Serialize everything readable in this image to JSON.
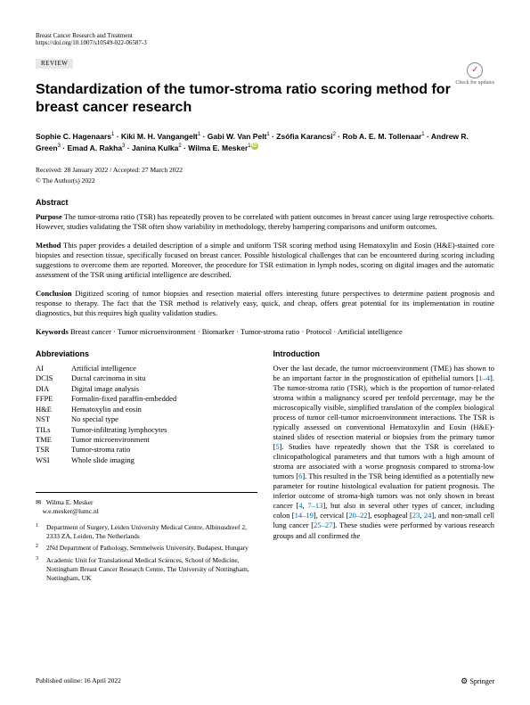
{
  "header": {
    "journal": "Breast Cancer Research and Treatment",
    "doi": "https://doi.org/10.1007/s10549-022-06587-3",
    "article_type": "REVIEW",
    "check_updates": "Check for updates"
  },
  "title": "Standardization of the tumor-stroma ratio scoring method for breast cancer research",
  "authors_html": "Sophie C. Hagenaars<sup>1</sup> · Kiki M. H. Vangangelt<sup>1</sup> · Gabi W. Van Pelt<sup>1</sup> · Zsófia Karancsi<sup>2</sup> · Rob A. E. M. Tollenaar<sup>1</sup> · Andrew R. Green<sup>3</sup> · Emad A. Rakha<sup>3</sup> · Janina Kulka<sup>2</sup> · Wilma E. Mesker<sup>1</sup><span class='orcid'>iD</span>",
  "dates": "Received: 28 January 2022 / Accepted: 27 March 2022",
  "copyright": "© The Author(s) 2022",
  "abstract": {
    "heading": "Abstract",
    "purpose_label": "Purpose",
    "purpose": " The tumor-stroma ratio (TSR) has repeatedly proven to be correlated with patient outcomes in breast cancer using large retrospective cohorts. However, studies validating the TSR often show variability in methodology, thereby hampering comparisons and uniform outcomes.",
    "method_label": "Method",
    "method": " This paper provides a detailed description of a simple and uniform TSR scoring method using Hematoxylin and Eosin (H&E)-stained core biopsies and resection tissue, specifically focused on breast cancer. Possible histological challenges that can be encountered during scoring including suggestions to overcome them are reported. Moreover, the procedure for TSR estimation in lymph nodes, scoring on digital images and the automatic assessment of the TSR using artificial intelligence are described.",
    "conclusion_label": "Conclusion",
    "conclusion": " Digitized scoring of tumor biopsies and resection material offers interesting future perspectives to determine patient prognosis and response to therapy. The fact that the TSR method is relatively easy, quick, and cheap, offers great potential for its implementation in routine diagnostics, but this requires high quality validation studies."
  },
  "keywords": {
    "label": "Keywords",
    "text": " Breast cancer · Tumor microenvironment · Biomarker · Tumor-stroma ratio · Protocol · Artificial intelligence"
  },
  "abbreviations": {
    "heading": "Abbreviations",
    "items": [
      {
        "k": "AI",
        "v": "Artificial intelligence"
      },
      {
        "k": "DCIS",
        "v": "Ductal carcinoma in situ"
      },
      {
        "k": "DIA",
        "v": "Digital image analysis"
      },
      {
        "k": "FFPE",
        "v": "Formalin-fixed paraffin-embedded"
      },
      {
        "k": "H&E",
        "v": "Hematoxylin and eosin"
      },
      {
        "k": "NST",
        "v": "No special type"
      },
      {
        "k": "TILs",
        "v": "Tumor-infiltrating lymphocytes"
      },
      {
        "k": "TME",
        "v": "Tumor microenvironment"
      },
      {
        "k": "TSR",
        "v": "Tumor-stroma ratio"
      },
      {
        "k": "WSI",
        "v": "Whole slide imaging"
      }
    ]
  },
  "introduction": {
    "heading": "Introduction",
    "p1_a": "Over the last decade, the tumor microenvironment (TME) has shown to be an important factor in the prognostication of epithelial tumors [",
    "ref1": "1–4",
    "p1_b": "]. The tumor-stroma ratio (TSR), which is the proportion of tumor-related stroma within a malignancy scored per tenfold percentage, may be the microscopically visible, simplified translation of the complex biological process of tumor cell-tumor microenvironment interactions. The TSR is typically assessed on conventional Hematoxylin and Eosin (H&E)-stained slides of resection material or biopsies from the primary tumor [",
    "ref2": "5",
    "p1_c": "]. Studies have repeatedly shown that the TSR is correlated to clinicopathological parameters and that tumors with a high amount of stroma are associated with a worse prognosis compared to stroma-low tumors [",
    "ref3": "6",
    "p1_d": "]. This resulted in the TSR being identified as a potentially new parameter for routine histological evaluation for patient prognosis. The inferior outcome of stroma-high tumors was not only shown in breast cancer [",
    "ref4": "4",
    "p1_e": ", ",
    "ref5": "7–13",
    "p1_f": "], but also in several other types of cancer, including colon [",
    "ref6": "14–19",
    "p1_g": "], cervical [",
    "ref7": "20–22",
    "p1_h": "], esophageal [",
    "ref8": "23",
    "p1_i": ", ",
    "ref9": "24",
    "p1_j": "], and non-small cell lung cancer [",
    "ref10": "25–27",
    "p1_k": "]. These studies were performed by various research groups and all confirmed the"
  },
  "correspondence": {
    "name": "Wilma E. Mesker",
    "email": "w.e.mesker@lumc.nl"
  },
  "affiliations": [
    {
      "n": "1",
      "text": "Department of Surgery, Leiden University Medical Centre, Albinusdreef 2, 2333 ZA, Leiden, The Netherlands"
    },
    {
      "n": "2",
      "text": "2Nd Department of Pathology, Semmelweis University, Budapest, Hungary"
    },
    {
      "n": "3",
      "text": "Academic Unit for Translational Medical Sciences, School of Medicine, Nottingham Breast Cancer Research Centre, The University of Nottingham, Nottingham, UK"
    }
  ],
  "footer": {
    "published": "Published online: 16 April 2022",
    "publisher": "Springer"
  }
}
